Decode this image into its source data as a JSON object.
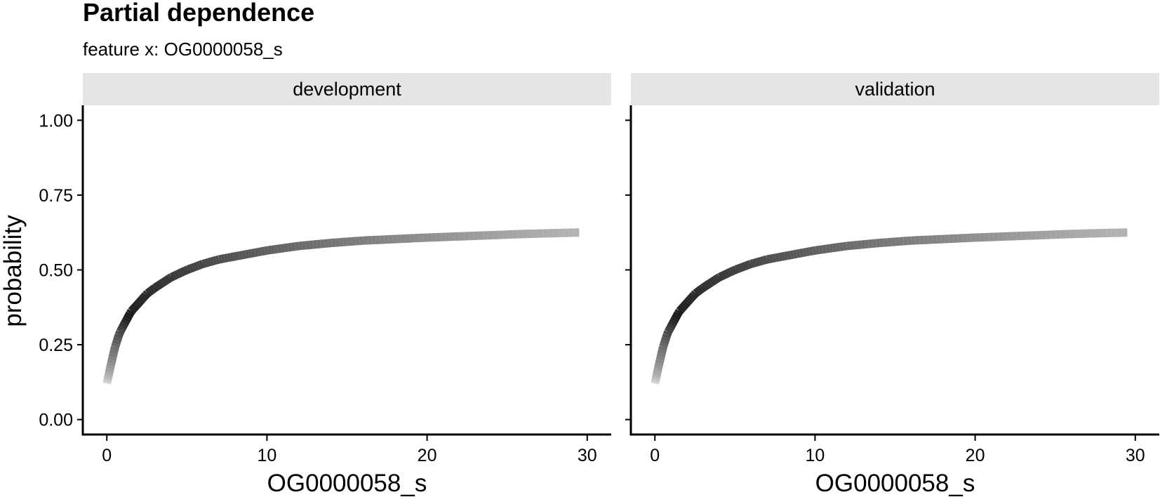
{
  "chart_data": {
    "type": "line",
    "title": "Partial dependence",
    "subtitle": "feature x: OG0000058_s",
    "xlabel": "OG0000058_s",
    "ylabel": "probability",
    "xlim": [
      -1.5,
      31.5
    ],
    "ylim": [
      -0.05,
      1.05
    ],
    "x_ticks": [
      0,
      10,
      20,
      30
    ],
    "y_ticks": [
      0.0,
      0.25,
      0.5,
      0.75,
      1.0
    ],
    "x_tick_labels": [
      "0",
      "10",
      "20",
      "30"
    ],
    "y_tick_labels": [
      "0.00",
      "0.25",
      "0.50",
      "0.75",
      "1.00"
    ],
    "grid": false,
    "line_color_gradient": [
      "#e6e6e6",
      "#1a1a1a",
      "#b3b3b3"
    ],
    "panels": [
      {
        "name": "development",
        "series": [
          {
            "x": [
              0,
              0.2,
              0.5,
              0.8,
              1.0,
              1.5,
              2.0,
              2.5,
              3.0,
              4.0,
              5.0,
              6.0,
              7.0,
              8.0,
              10.0,
              12.0,
              14.0,
              16.0,
              18.0,
              20.0,
              22.0,
              24.0,
              26.0,
              28.0,
              29.5
            ],
            "y": [
              0.12,
              0.17,
              0.24,
              0.29,
              0.31,
              0.36,
              0.39,
              0.42,
              0.44,
              0.475,
              0.5,
              0.52,
              0.535,
              0.545,
              0.565,
              0.58,
              0.59,
              0.598,
              0.603,
              0.608,
              0.612,
              0.616,
              0.62,
              0.623,
              0.625
            ]
          }
        ]
      },
      {
        "name": "validation",
        "series": [
          {
            "x": [
              0,
              0.2,
              0.5,
              0.8,
              1.0,
              1.5,
              2.0,
              2.5,
              3.0,
              4.0,
              5.0,
              6.0,
              7.0,
              8.0,
              10.0,
              12.0,
              14.0,
              16.0,
              18.0,
              20.0,
              22.0,
              24.0,
              26.0,
              28.0,
              29.5
            ],
            "y": [
              0.12,
              0.17,
              0.24,
              0.29,
              0.31,
              0.36,
              0.39,
              0.42,
              0.44,
              0.475,
              0.5,
              0.52,
              0.535,
              0.545,
              0.565,
              0.58,
              0.59,
              0.598,
              0.603,
              0.608,
              0.612,
              0.616,
              0.62,
              0.623,
              0.625
            ]
          }
        ]
      }
    ]
  }
}
